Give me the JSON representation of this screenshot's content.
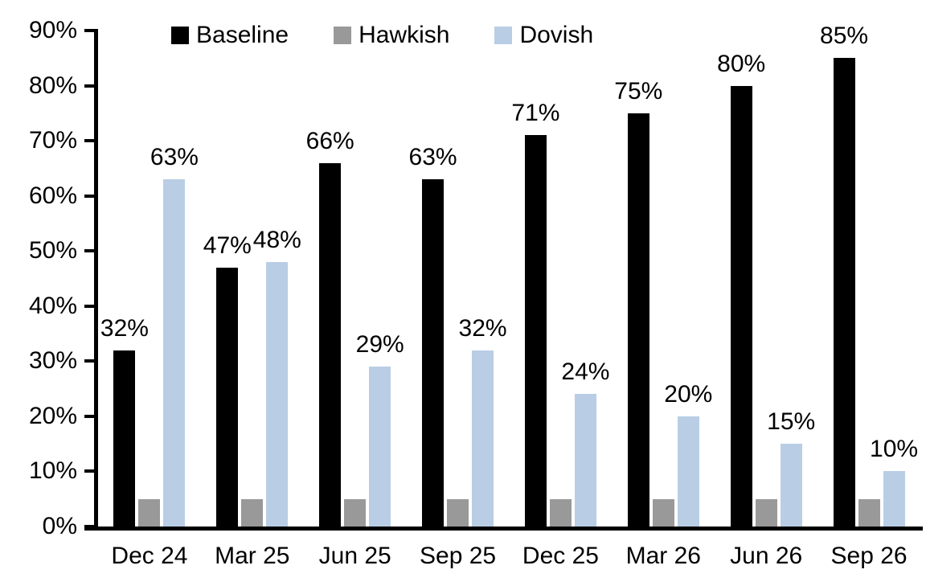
{
  "chart_data": {
    "type": "bar",
    "title": "",
    "categories": [
      "Dec 24",
      "Mar 25",
      "Jun 25",
      "Sep 25",
      "Dec 25",
      "Mar 26",
      "Jun 26",
      "Sep 26"
    ],
    "series": [
      {
        "name": "Baseline",
        "color": "#000000",
        "values": [
          32,
          47,
          66,
          63,
          71,
          75,
          80,
          85
        ],
        "labels": [
          "32%",
          "47%",
          "66%",
          "63%",
          "71%",
          "75%",
          "80%",
          "85%"
        ],
        "show_labels": true
      },
      {
        "name": "Hawkish",
        "color": "#999999",
        "values": [
          5,
          5,
          5,
          5,
          5,
          5,
          5,
          5
        ],
        "labels": [],
        "show_labels": false
      },
      {
        "name": "Dovish",
        "color": "#B9CDE5",
        "values": [
          63,
          48,
          29,
          32,
          24,
          20,
          15,
          10
        ],
        "labels": [
          "63%",
          "48%",
          "29%",
          "32%",
          "24%",
          "20%",
          "15%",
          "10%"
        ],
        "show_labels": true
      }
    ],
    "ylabel": "",
    "xlabel": "",
    "ylim": [
      0,
      90
    ],
    "y_tick_step": 10,
    "y_ticks": [
      "0%",
      "10%",
      "20%",
      "30%",
      "40%",
      "50%",
      "60%",
      "70%",
      "80%",
      "90%"
    ],
    "grid": false,
    "legend_position": "top",
    "axis_color": "#000000",
    "background_color": "#FFFFFF"
  }
}
